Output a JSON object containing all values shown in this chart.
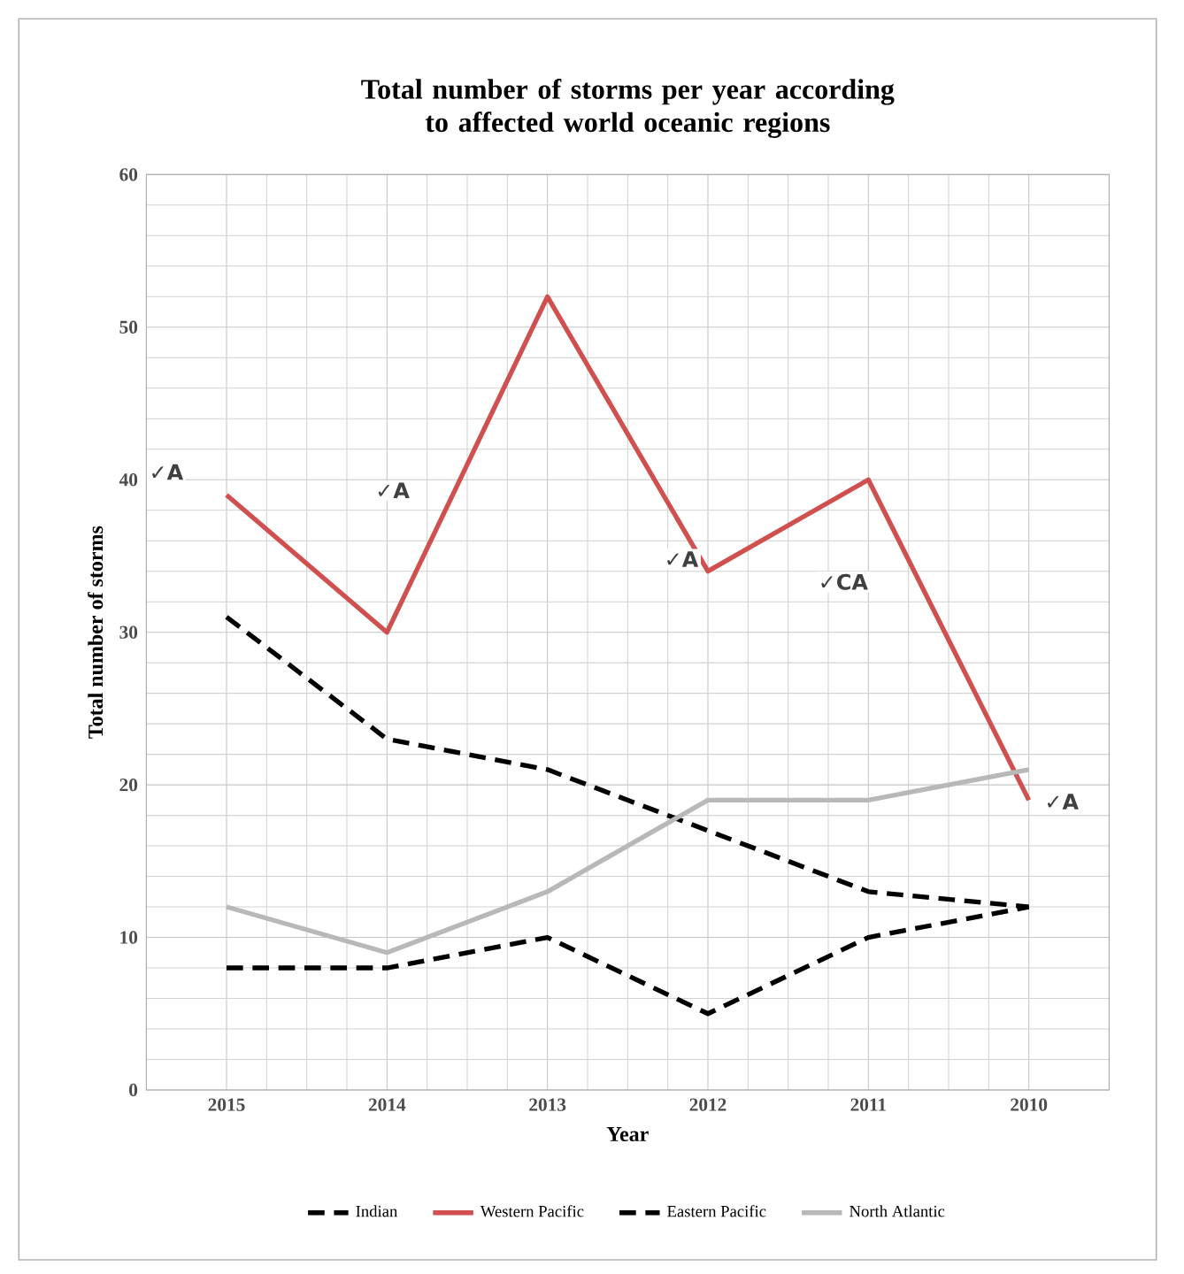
{
  "chart_data": {
    "type": "line",
    "title": "Total number of storms per year according to affected world oceanic regions",
    "xlabel": "Year",
    "ylabel": "Total number of storms",
    "categories": [
      "2015",
      "2014",
      "2013",
      "2012",
      "2011",
      "2010"
    ],
    "series": [
      {
        "name": "Indian",
        "color": "#000000",
        "line_style": "dashed",
        "values": [
          8,
          8,
          10,
          5,
          10,
          12
        ]
      },
      {
        "name": "Western Pacific",
        "color": "#d05050",
        "line_style": "solid",
        "values": [
          39,
          30,
          52,
          34,
          40,
          19
        ]
      },
      {
        "name": "Eastern Pacific",
        "color": "#000000",
        "line_style": "dashed",
        "values": [
          31,
          23,
          21,
          17,
          13,
          12
        ]
      },
      {
        "name": "North Atlantic",
        "color": "#b8b8b8",
        "line_style": "solid",
        "values": [
          12,
          9,
          13,
          19,
          19,
          21
        ]
      }
    ],
    "annotations": [
      "✓A",
      "✓A",
      "✓A",
      "✓CA",
      "✓A"
    ],
    "ylim": [
      0,
      60
    ],
    "yticks": [
      0,
      10,
      20,
      30,
      40,
      50,
      60
    ],
    "grid": true,
    "legend": "bottom",
    "marker": "none"
  }
}
